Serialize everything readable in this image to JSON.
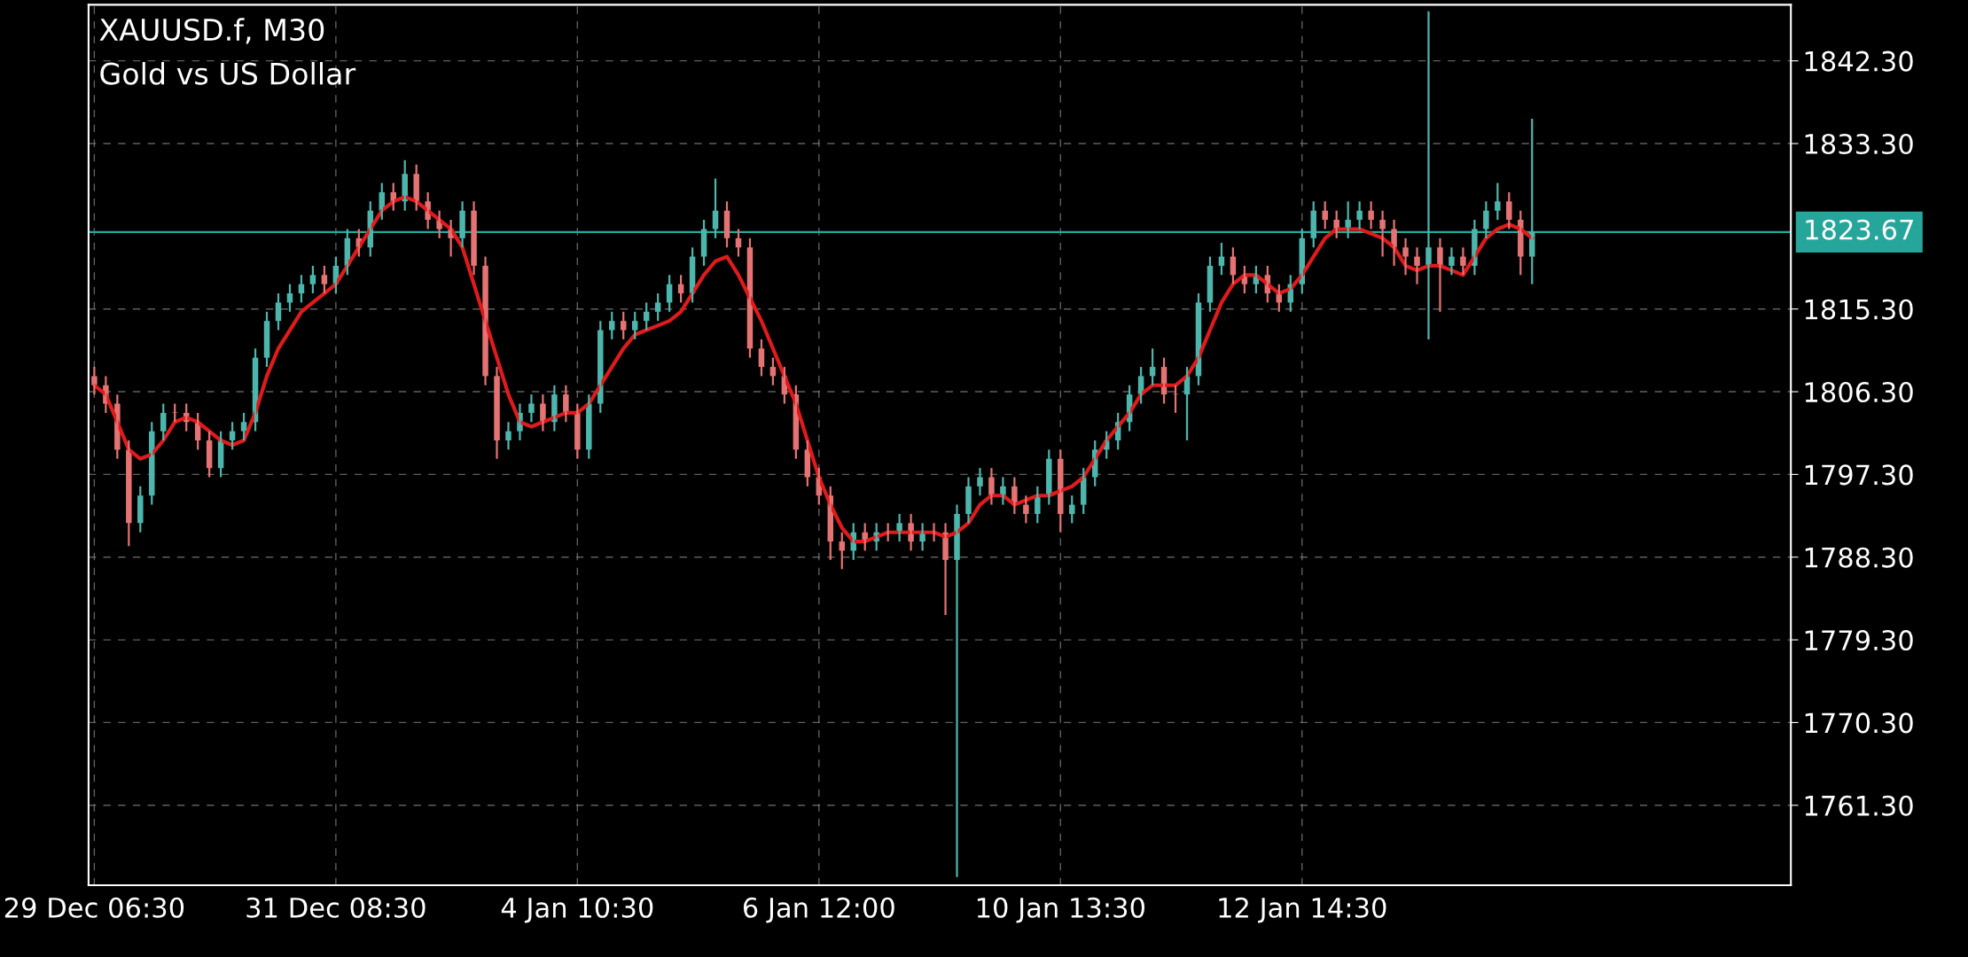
{
  "chart_data": {
    "type": "candlestick",
    "title": "XAUUSD.f, M30",
    "subtitle": "Gold vs US Dollar",
    "categories": [
      "29 Dec 06:30",
      null,
      null,
      null,
      null,
      null,
      null,
      null,
      null,
      null,
      null,
      null,
      null,
      null,
      null,
      null,
      null,
      null,
      null,
      null,
      null,
      "31 Dec 08:30",
      null,
      null,
      null,
      null,
      null,
      null,
      null,
      null,
      null,
      null,
      null,
      null,
      null,
      null,
      null,
      null,
      null,
      null,
      null,
      null,
      "4 Jan 10:30",
      null,
      null,
      null,
      null,
      null,
      null,
      null,
      null,
      null,
      null,
      null,
      null,
      null,
      null,
      null,
      null,
      null,
      null,
      null,
      null,
      "6 Jan 12:00",
      null,
      null,
      null,
      null,
      null,
      null,
      null,
      null,
      null,
      null,
      null,
      null,
      null,
      null,
      null,
      null,
      null,
      null,
      null,
      null,
      "10 Jan 13:30",
      null,
      null,
      null,
      null,
      null,
      null,
      null,
      null,
      null,
      null,
      null,
      null,
      null,
      null,
      null,
      null,
      null,
      null,
      null,
      null,
      "12 Jan 14:30",
      null,
      null,
      null,
      null,
      null,
      null,
      null,
      null,
      null,
      null,
      null,
      null,
      null,
      null,
      null,
      null,
      null,
      null,
      null,
      null,
      null,
      null,
      null,
      null,
      null,
      null,
      null,
      null,
      null,
      null,
      null,
      null,
      null,
      null,
      null,
      null,
      null,
      null,
      null,
      null,
      null,
      null
    ],
    "ylim": [
      1752.6,
      1848.4
    ],
    "yticks": [
      {
        "value": 1761.3,
        "label": "1761.30"
      },
      {
        "value": 1770.3,
        "label": "1770.30"
      },
      {
        "value": 1779.3,
        "label": "1779.30"
      },
      {
        "value": 1788.3,
        "label": "1788.30"
      },
      {
        "value": 1797.3,
        "label": "1797.30"
      },
      {
        "value": 1806.3,
        "label": "1806.30"
      },
      {
        "value": 1815.3,
        "label": "1815.30"
      },
      {
        "value": 1833.3,
        "label": "1833.30"
      },
      {
        "value": 1842.3,
        "label": "1842.30"
      }
    ],
    "grid": true,
    "ref_lines": [
      {
        "axis": "y",
        "value": 1823.67,
        "label": "1823.67",
        "color": "#26a69a"
      }
    ],
    "series": [
      {
        "ohlc": [
          [
            1808,
            1809,
            1806,
            1807
          ],
          [
            1807,
            1808,
            1804,
            1805
          ],
          [
            1805,
            1806,
            1799,
            1800
          ],
          [
            1800,
            1801,
            1789.5,
            1792
          ],
          [
            1792,
            1796,
            1791,
            1795
          ],
          [
            1795,
            1803,
            1794,
            1802
          ],
          [
            1802,
            1805,
            1801,
            1804
          ],
          [
            1804,
            1805,
            1803,
            1804
          ],
          [
            1804,
            1805,
            1802,
            1803
          ],
          [
            1803,
            1804,
            1800,
            1801
          ],
          [
            1801,
            1802,
            1797,
            1798
          ],
          [
            1798,
            1802,
            1797,
            1801
          ],
          [
            1801,
            1803,
            1800,
            1802
          ],
          [
            1802,
            1804,
            1801,
            1803
          ],
          [
            1803,
            1811,
            1802,
            1810
          ],
          [
            1810,
            1815,
            1809,
            1814
          ],
          [
            1814,
            1817,
            1813,
            1816
          ],
          [
            1816,
            1818,
            1815,
            1817
          ],
          [
            1817,
            1819,
            1816,
            1818
          ],
          [
            1818,
            1820,
            1817,
            1819
          ],
          [
            1819,
            1820,
            1817,
            1818
          ],
          [
            1818,
            1821,
            1817,
            1820
          ],
          [
            1820,
            1824,
            1819,
            1823
          ],
          [
            1823,
            1824,
            1821,
            1822
          ],
          [
            1822,
            1827,
            1821,
            1826
          ],
          [
            1826,
            1829,
            1825,
            1828
          ],
          [
            1828,
            1829,
            1826,
            1827
          ],
          [
            1827,
            1831.5,
            1826,
            1830
          ],
          [
            1830,
            1831,
            1826,
            1827
          ],
          [
            1827,
            1828,
            1824,
            1825
          ],
          [
            1825,
            1826,
            1823,
            1824
          ],
          [
            1824,
            1825,
            1821,
            1823
          ],
          [
            1823,
            1827,
            1822,
            1826
          ],
          [
            1826,
            1827,
            1819,
            1820
          ],
          [
            1820,
            1821,
            1807,
            1808
          ],
          [
            1808,
            1809,
            1799,
            1801
          ],
          [
            1801,
            1803,
            1800,
            1802
          ],
          [
            1802,
            1805,
            1801,
            1804
          ],
          [
            1804,
            1806,
            1803,
            1805
          ],
          [
            1805,
            1806,
            1802,
            1803
          ],
          [
            1803,
            1807,
            1802,
            1806
          ],
          [
            1806,
            1807,
            1803,
            1804
          ],
          [
            1804,
            1805,
            1799,
            1800
          ],
          [
            1800,
            1806,
            1799,
            1805
          ],
          [
            1805,
            1814,
            1804,
            1813
          ],
          [
            1813,
            1815,
            1812,
            1814
          ],
          [
            1814,
            1815,
            1812,
            1813
          ],
          [
            1813,
            1815,
            1812,
            1814
          ],
          [
            1814,
            1816,
            1813,
            1815
          ],
          [
            1815,
            1817,
            1814,
            1816
          ],
          [
            1816,
            1819,
            1815,
            1818
          ],
          [
            1818,
            1819,
            1816,
            1817
          ],
          [
            1817,
            1822,
            1816,
            1821
          ],
          [
            1821,
            1825,
            1820,
            1824
          ],
          [
            1824,
            1829.5,
            1823,
            1826
          ],
          [
            1826,
            1827,
            1822,
            1823
          ],
          [
            1823,
            1824,
            1821,
            1822
          ],
          [
            1822,
            1823,
            1810,
            1811
          ],
          [
            1811,
            1812,
            1808,
            1809
          ],
          [
            1809,
            1810,
            1807,
            1808
          ],
          [
            1808,
            1809,
            1805,
            1806
          ],
          [
            1806,
            1807,
            1799,
            1800
          ],
          [
            1800,
            1801,
            1796,
            1797
          ],
          [
            1797,
            1798,
            1794,
            1795
          ],
          [
            1795,
            1796,
            1788,
            1790
          ],
          [
            1790,
            1791,
            1787,
            1789
          ],
          [
            1789,
            1792,
            1788,
            1791
          ],
          [
            1791,
            1792,
            1789,
            1790
          ],
          [
            1790,
            1792,
            1789,
            1791
          ],
          [
            1791,
            1792,
            1790,
            1791
          ],
          [
            1791,
            1793,
            1790,
            1792
          ],
          [
            1792,
            1793,
            1789,
            1790
          ],
          [
            1790,
            1792,
            1789,
            1791
          ],
          [
            1791,
            1792,
            1790,
            1791
          ],
          [
            1791,
            1792,
            1782,
            1788
          ],
          [
            1788,
            1794,
            1753.5,
            1793
          ],
          [
            1793,
            1797,
            1792,
            1796
          ],
          [
            1796,
            1798,
            1795,
            1797
          ],
          [
            1797,
            1798,
            1794,
            1795
          ],
          [
            1795,
            1797,
            1794,
            1796
          ],
          [
            1796,
            1797,
            1793,
            1794
          ],
          [
            1794,
            1795,
            1792,
            1793
          ],
          [
            1793,
            1796,
            1792,
            1795
          ],
          [
            1795,
            1800,
            1794,
            1799
          ],
          [
            1799,
            1800,
            1791,
            1793
          ],
          [
            1793,
            1795,
            1792,
            1794
          ],
          [
            1794,
            1798,
            1793,
            1797
          ],
          [
            1797,
            1801,
            1796,
            1800
          ],
          [
            1800,
            1802,
            1799,
            1801
          ],
          [
            1801,
            1804,
            1800,
            1803
          ],
          [
            1803,
            1807,
            1802,
            1806
          ],
          [
            1806,
            1809,
            1805,
            1808
          ],
          [
            1808,
            1811,
            1807,
            1809
          ],
          [
            1809,
            1810,
            1805,
            1806
          ],
          [
            1806,
            1807,
            1804,
            1806
          ],
          [
            1806,
            1809,
            1801,
            1808
          ],
          [
            1808,
            1817,
            1807,
            1816
          ],
          [
            1816,
            1821,
            1815,
            1820
          ],
          [
            1820,
            1822.5,
            1819,
            1821
          ],
          [
            1821,
            1822,
            1818,
            1819
          ],
          [
            1819,
            1820,
            1817,
            1818
          ],
          [
            1818,
            1820,
            1817,
            1819
          ],
          [
            1819,
            1820,
            1816,
            1817
          ],
          [
            1817,
            1818,
            1815,
            1816
          ],
          [
            1816,
            1819,
            1815,
            1818
          ],
          [
            1818,
            1824,
            1817,
            1823
          ],
          [
            1823,
            1827,
            1822,
            1826
          ],
          [
            1826,
            1827,
            1824,
            1825
          ],
          [
            1825,
            1826,
            1823,
            1824
          ],
          [
            1824,
            1827,
            1823,
            1825
          ],
          [
            1825,
            1827,
            1824,
            1826
          ],
          [
            1826,
            1827,
            1824,
            1825
          ],
          [
            1825,
            1826,
            1821,
            1824
          ],
          [
            1824,
            1825,
            1820,
            1822
          ],
          [
            1822,
            1823,
            1819,
            1821
          ],
          [
            1821,
            1822,
            1818,
            1820
          ],
          [
            1820,
            1847.7,
            1812,
            1822
          ],
          [
            1822,
            1823,
            1815,
            1820
          ],
          [
            1820,
            1822,
            1819,
            1821
          ],
          [
            1821,
            1822,
            1819,
            1820
          ],
          [
            1820,
            1825,
            1819,
            1824
          ],
          [
            1824,
            1827,
            1823,
            1826
          ],
          [
            1826,
            1829,
            1825,
            1827
          ],
          [
            1827,
            1828,
            1824,
            1825
          ],
          [
            1825,
            1826,
            1819,
            1821
          ],
          [
            1821,
            1836,
            1818,
            1823.67
          ],
          null,
          null,
          null,
          null,
          null,
          null,
          null,
          null,
          null,
          null,
          null,
          null,
          null,
          null,
          null,
          null,
          null,
          null,
          null,
          null,
          null,
          null
        ],
        "colors": [
          "#e57373",
          "#e57373",
          "#e57373",
          "#e57373",
          "#4db6ac",
          "#4db6ac",
          "#4db6ac",
          "#e57373",
          "#e57373",
          "#e57373",
          "#e57373",
          "#4db6ac",
          "#4db6ac",
          "#4db6ac",
          "#4db6ac",
          "#4db6ac",
          "#4db6ac",
          "#4db6ac",
          "#4db6ac",
          "#4db6ac",
          "#e57373",
          "#4db6ac",
          "#4db6ac",
          "#e57373",
          "#4db6ac",
          "#4db6ac",
          "#e57373",
          "#4db6ac",
          "#e57373",
          "#e57373",
          "#e57373",
          "#e57373",
          "#4db6ac",
          "#e57373",
          "#e57373",
          "#e57373",
          "#4db6ac",
          "#4db6ac",
          "#4db6ac",
          "#e57373",
          "#4db6ac",
          "#e57373",
          "#e57373",
          "#4db6ac",
          "#4db6ac",
          "#4db6ac",
          "#e57373",
          "#4db6ac",
          "#4db6ac",
          "#4db6ac",
          "#4db6ac",
          "#e57373",
          "#4db6ac",
          "#4db6ac",
          "#4db6ac",
          "#e57373",
          "#e57373",
          "#e57373",
          "#e57373",
          "#e57373",
          "#e57373",
          "#e57373",
          "#e57373",
          "#e57373",
          "#e57373",
          "#e57373",
          "#4db6ac",
          "#e57373",
          "#4db6ac",
          "#e57373",
          "#4db6ac",
          "#e57373",
          "#4db6ac",
          "#e57373",
          "#e57373",
          "#4db6ac",
          "#4db6ac",
          "#4db6ac",
          "#e57373",
          "#4db6ac",
          "#e57373",
          "#e57373",
          "#4db6ac",
          "#4db6ac",
          "#e57373",
          "#4db6ac",
          "#4db6ac",
          "#4db6ac",
          "#4db6ac",
          "#4db6ac",
          "#4db6ac",
          "#4db6ac",
          "#4db6ac",
          "#e57373",
          "#e57373",
          "#4db6ac",
          "#4db6ac",
          "#4db6ac",
          "#4db6ac",
          "#e57373",
          "#e57373",
          "#4db6ac",
          "#e57373",
          "#e57373",
          "#4db6ac",
          "#4db6ac",
          "#4db6ac",
          "#e57373",
          "#e57373",
          "#4db6ac",
          "#4db6ac",
          "#e57373",
          "#e57373",
          "#e57373",
          "#e57373",
          "#e57373",
          "#4db6ac",
          "#e57373",
          "#4db6ac",
          "#e57373",
          "#4db6ac",
          "#4db6ac",
          "#4db6ac",
          "#e57373",
          "#e57373",
          "#4db6ac",
          null,
          null,
          null,
          null,
          null,
          null,
          null,
          null,
          null,
          null,
          null,
          null,
          null,
          null,
          null,
          null,
          null,
          null,
          null,
          null,
          null,
          null
        ]
      },
      {
        "type": "line",
        "color": "#e01b1b",
        "values": [
          1807,
          1806,
          1803,
          1800,
          1799,
          1799.5,
          1801,
          1803,
          1803.5,
          1803,
          1802,
          1801,
          1800.5,
          1801,
          1804,
          1808,
          1811,
          1813,
          1815,
          1816,
          1817,
          1818,
          1820,
          1822,
          1824,
          1826,
          1827,
          1827.5,
          1827,
          1826,
          1825,
          1824,
          1822,
          1818,
          1814,
          1810,
          1806,
          1803,
          1802.5,
          1803,
          1803.5,
          1804,
          1804,
          1805,
          1807,
          1809,
          1811,
          1812.5,
          1813,
          1813.5,
          1814,
          1815,
          1817,
          1819,
          1820.5,
          1821,
          1819,
          1816.5,
          1814,
          1811,
          1808,
          1805,
          1801,
          1797,
          1794,
          1791.5,
          1790,
          1790,
          1790.5,
          1791,
          1791,
          1791,
          1791,
          1791,
          1790.5,
          1791,
          1792,
          1794,
          1795,
          1795,
          1794,
          1794.5,
          1795,
          1795,
          1795.5,
          1796,
          1797,
          1799,
          1801,
          1802.5,
          1804,
          1806,
          1807,
          1807,
          1807,
          1808,
          1810,
          1813,
          1816,
          1818,
          1819,
          1819,
          1818,
          1817,
          1817.5,
          1819,
          1821,
          1823,
          1824,
          1824,
          1824,
          1823.5,
          1823,
          1822,
          1820,
          1819.5,
          1820,
          1820,
          1819.5,
          1819,
          1821,
          1823,
          1824,
          1824.5,
          1824,
          1823,
          null,
          null,
          null,
          null,
          null,
          null,
          null,
          null,
          null,
          null,
          null,
          null,
          null,
          null,
          null,
          null,
          null,
          null,
          null,
          null,
          null,
          null
        ]
      }
    ]
  }
}
